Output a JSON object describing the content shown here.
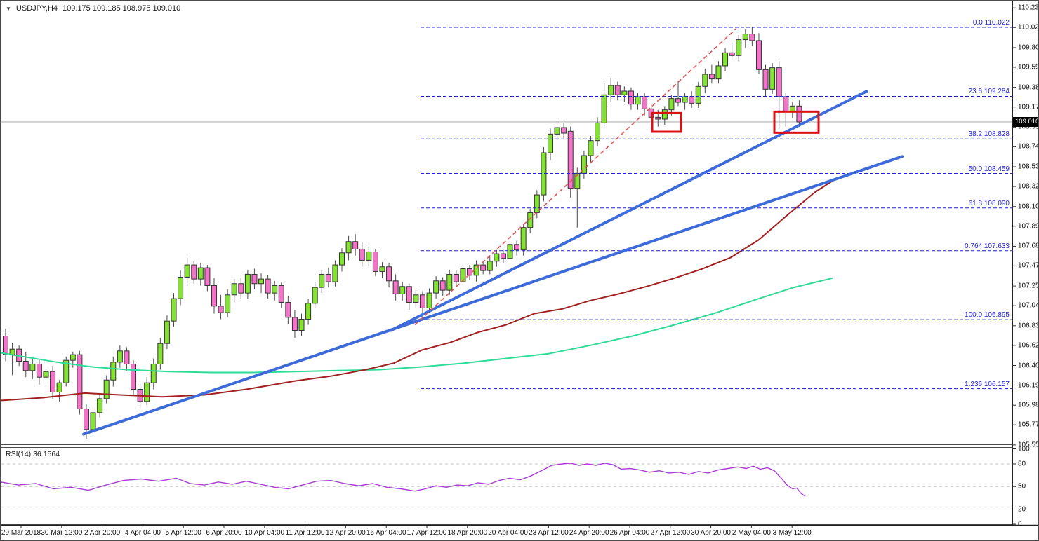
{
  "window": {
    "symbol_period": "USDJPY,H4",
    "ohlc_line": "109.175 109.185 108.975 109.010",
    "dropdown_icon": "▼"
  },
  "current_price": "109.010",
  "colors": {
    "bull": "#84E332",
    "bear": "#F273C7",
    "candle_border": "#333333",
    "wick": "#4a4a4a",
    "ma_green": "#2EDB98",
    "ma_darkred": "#A22020",
    "trendline_blue": "#3E6BDA",
    "fib_blue": "#2020D8",
    "red_dashed": "#E25555",
    "highlight_box": "#DD1111",
    "rsi_line": "#A73ED1",
    "price_line_gray": "#AAAAAA",
    "badge_bg": "#000000",
    "badge_text": "#FFFFFF",
    "rsi_grid": "#C4C4C4",
    "panel_border": "#4a4a4a"
  },
  "price_axis": {
    "labels": [
      "110.230",
      "110.020",
      "109.805",
      "109.595",
      "109.380",
      "109.170",
      "108.955",
      "108.745",
      "108.530",
      "108.320",
      "108.105",
      "107.895",
      "107.680",
      "107.470",
      "107.255",
      "107.045",
      "106.830",
      "106.620",
      "106.405",
      "106.195",
      "105.980",
      "105.770",
      "105.555"
    ]
  },
  "time_axis": {
    "labels": [
      "29 Mar 2018",
      "30 Mar 12:00",
      "2 Apr 20:00",
      "4 Apr 04:00",
      "5 Apr 12:00",
      "6 Apr 20:00",
      "10 Apr 04:00",
      "11 Apr 12:00",
      "12 Apr 20:00",
      "16 Apr 04:00",
      "17 Apr 12:00",
      "18 Apr 20:00",
      "20 Apr 04:00",
      "23 Apr 12:00",
      "24 Apr 20:00",
      "26 Apr 04:00",
      "27 Apr 12:00",
      "30 Apr 20:00",
      "2 May 04:00",
      "3 May 12:00"
    ]
  },
  "rsi_panel": {
    "label": "RSI(14) 36.1564",
    "scale_labels": [
      "100",
      "80",
      "50",
      "20",
      "0"
    ],
    "scale_values": [
      100,
      80,
      50,
      20,
      0
    ],
    "gridlines": [
      80,
      50,
      20
    ],
    "series": [
      [
        0,
        56
      ],
      [
        25,
        52
      ],
      [
        50,
        54
      ],
      [
        75,
        47
      ],
      [
        100,
        49
      ],
      [
        125,
        45
      ],
      [
        150,
        52
      ],
      [
        175,
        58
      ],
      [
        200,
        60
      ],
      [
        225,
        57
      ],
      [
        250,
        61
      ],
      [
        270,
        54
      ],
      [
        290,
        52
      ],
      [
        310,
        56
      ],
      [
        330,
        53
      ],
      [
        350,
        57
      ],
      [
        370,
        53
      ],
      [
        390,
        49
      ],
      [
        410,
        47
      ],
      [
        430,
        52
      ],
      [
        450,
        57
      ],
      [
        470,
        58
      ],
      [
        490,
        54
      ],
      [
        510,
        51
      ],
      [
        530,
        54
      ],
      [
        550,
        49
      ],
      [
        570,
        47
      ],
      [
        590,
        44
      ],
      [
        605,
        47
      ],
      [
        620,
        51
      ],
      [
        635,
        49
      ],
      [
        650,
        52
      ],
      [
        665,
        51
      ],
      [
        680,
        55
      ],
      [
        695,
        53
      ],
      [
        710,
        58
      ],
      [
        725,
        61
      ],
      [
        740,
        59
      ],
      [
        755,
        64
      ],
      [
        770,
        71
      ],
      [
        785,
        78
      ],
      [
        800,
        80
      ],
      [
        812,
        81
      ],
      [
        824,
        78
      ],
      [
        836,
        80
      ],
      [
        848,
        78
      ],
      [
        860,
        81
      ],
      [
        872,
        79
      ],
      [
        884,
        73
      ],
      [
        896,
        74
      ],
      [
        910,
        72
      ],
      [
        924,
        69
      ],
      [
        938,
        71
      ],
      [
        952,
        68
      ],
      [
        966,
        69
      ],
      [
        980,
        66
      ],
      [
        994,
        70
      ],
      [
        1008,
        68
      ],
      [
        1022,
        72
      ],
      [
        1036,
        74
      ],
      [
        1050,
        76
      ],
      [
        1062,
        74
      ],
      [
        1072,
        77
      ],
      [
        1082,
        73
      ],
      [
        1092,
        75
      ],
      [
        1102,
        71
      ],
      [
        1112,
        61
      ],
      [
        1120,
        52
      ],
      [
        1128,
        47
      ],
      [
        1134,
        48
      ],
      [
        1140,
        41
      ],
      [
        1146,
        37
      ]
    ]
  },
  "chart_data": {
    "type": "candlestick",
    "title": "USDJPY,H4",
    "symbol": "USDJPY",
    "timeframe": "H4",
    "current_bar": {
      "open": "109.175",
      "high": "109.185",
      "low": "108.975",
      "close": "109.010"
    },
    "y_axis_range": [
      105.555,
      110.23
    ],
    "rsi_range": [
      0,
      100
    ],
    "grid": "horizontal-dashed-fib-only",
    "candles": [
      [
        106.72,
        106.8,
        106.45,
        106.52
      ],
      [
        106.52,
        106.65,
        106.3,
        106.58
      ],
      [
        106.58,
        106.62,
        106.4,
        106.45
      ],
      [
        106.45,
        106.55,
        106.28,
        106.35
      ],
      [
        106.35,
        106.48,
        106.26,
        106.42
      ],
      [
        106.42,
        106.46,
        106.2,
        106.28
      ],
      [
        106.28,
        106.38,
        106.18,
        106.34
      ],
      [
        106.34,
        106.4,
        106.05,
        106.12
      ],
      [
        106.12,
        106.25,
        106.02,
        106.22
      ],
      [
        106.22,
        106.5,
        106.18,
        106.46
      ],
      [
        106.46,
        106.55,
        106.38,
        106.52
      ],
      [
        106.52,
        106.56,
        105.88,
        105.94
      ],
      [
        105.94,
        105.99,
        105.62,
        105.72
      ],
      [
        105.72,
        105.95,
        105.68,
        105.9
      ],
      [
        105.9,
        106.1,
        105.85,
        106.05
      ],
      [
        106.05,
        106.3,
        106.0,
        106.25
      ],
      [
        106.25,
        106.5,
        106.18,
        106.44
      ],
      [
        106.44,
        106.62,
        106.38,
        106.56
      ],
      [
        106.56,
        106.6,
        106.35,
        106.42
      ],
      [
        106.42,
        106.46,
        106.08,
        106.15
      ],
      [
        106.15,
        106.22,
        105.95,
        106.02
      ],
      [
        106.02,
        106.28,
        105.98,
        106.22
      ],
      [
        106.22,
        106.48,
        106.15,
        106.42
      ],
      [
        106.42,
        106.7,
        106.36,
        106.64
      ],
      [
        106.64,
        106.94,
        106.58,
        106.88
      ],
      [
        106.88,
        107.18,
        106.82,
        107.12
      ],
      [
        107.12,
        107.42,
        107.05,
        107.35
      ],
      [
        107.35,
        107.56,
        107.26,
        107.48
      ],
      [
        107.48,
        107.52,
        107.28,
        107.33
      ],
      [
        107.33,
        107.5,
        107.26,
        107.45
      ],
      [
        107.45,
        107.48,
        107.2,
        107.26
      ],
      [
        107.26,
        107.34,
        106.96,
        107.04
      ],
      [
        107.04,
        107.16,
        106.9,
        106.97
      ],
      [
        106.97,
        107.22,
        106.92,
        107.16
      ],
      [
        107.16,
        107.33,
        107.08,
        107.28
      ],
      [
        107.28,
        107.34,
        107.12,
        107.18
      ],
      [
        107.18,
        107.43,
        107.12,
        107.38
      ],
      [
        107.38,
        107.44,
        107.22,
        107.28
      ],
      [
        107.28,
        107.39,
        107.18,
        107.33
      ],
      [
        107.33,
        107.37,
        107.12,
        107.18
      ],
      [
        107.18,
        107.31,
        107.1,
        107.26
      ],
      [
        107.26,
        107.29,
        107.02,
        107.08
      ],
      [
        107.08,
        107.15,
        106.85,
        106.92
      ],
      [
        106.92,
        107.0,
        106.7,
        106.78
      ],
      [
        106.78,
        106.96,
        106.72,
        106.9
      ],
      [
        106.9,
        107.12,
        106.84,
        107.07
      ],
      [
        107.07,
        107.3,
        107.02,
        107.24
      ],
      [
        107.24,
        107.43,
        107.18,
        107.38
      ],
      [
        107.38,
        107.45,
        107.24,
        107.3
      ],
      [
        107.3,
        107.53,
        107.25,
        107.48
      ],
      [
        107.48,
        107.66,
        107.41,
        107.61
      ],
      [
        107.61,
        107.79,
        107.53,
        107.73
      ],
      [
        107.73,
        107.81,
        107.58,
        107.65
      ],
      [
        107.65,
        107.72,
        107.46,
        107.53
      ],
      [
        107.53,
        107.68,
        107.47,
        107.62
      ],
      [
        107.62,
        107.65,
        107.36,
        107.41
      ],
      [
        107.41,
        107.51,
        107.34,
        107.46
      ],
      [
        107.46,
        107.5,
        107.24,
        107.31
      ],
      [
        107.31,
        107.38,
        107.1,
        107.17
      ],
      [
        107.17,
        107.3,
        107.1,
        107.25
      ],
      [
        107.25,
        107.28,
        107.0,
        107.08
      ],
      [
        107.08,
        107.21,
        107.02,
        107.16
      ],
      [
        107.16,
        107.2,
        106.9,
        107.02
      ],
      [
        107.02,
        107.23,
        106.98,
        107.18
      ],
      [
        107.18,
        107.36,
        107.12,
        107.31
      ],
      [
        107.31,
        107.35,
        107.15,
        107.21
      ],
      [
        107.21,
        107.43,
        107.16,
        107.38
      ],
      [
        107.38,
        107.42,
        107.25,
        107.3
      ],
      [
        107.3,
        107.49,
        107.26,
        107.44
      ],
      [
        107.44,
        107.48,
        107.32,
        107.37
      ],
      [
        107.37,
        107.53,
        107.3,
        107.48
      ],
      [
        107.48,
        107.52,
        107.38,
        107.42
      ],
      [
        107.42,
        107.57,
        107.38,
        107.52
      ],
      [
        107.52,
        107.64,
        107.46,
        107.6
      ],
      [
        107.6,
        107.64,
        107.5,
        107.55
      ],
      [
        107.55,
        107.74,
        107.5,
        107.7
      ],
      [
        107.7,
        107.74,
        107.58,
        107.64
      ],
      [
        107.64,
        107.92,
        107.58,
        107.88
      ],
      [
        107.88,
        108.08,
        107.82,
        108.04
      ],
      [
        108.04,
        108.28,
        107.98,
        108.23
      ],
      [
        108.23,
        108.74,
        108.16,
        108.68
      ],
      [
        108.68,
        108.94,
        108.6,
        108.88
      ],
      [
        108.88,
        109.0,
        108.82,
        108.95
      ],
      [
        108.95,
        109.0,
        108.84,
        108.89
      ],
      [
        108.91,
        108.96,
        108.2,
        108.3
      ],
      [
        108.3,
        108.52,
        107.88,
        108.46
      ],
      [
        108.46,
        108.7,
        108.4,
        108.65
      ],
      [
        108.65,
        108.86,
        108.58,
        108.81
      ],
      [
        108.81,
        109.06,
        108.75,
        109.0
      ],
      [
        109.0,
        109.42,
        108.94,
        109.3
      ],
      [
        109.3,
        109.48,
        109.22,
        109.4
      ],
      [
        109.4,
        109.44,
        109.24,
        109.3
      ],
      [
        109.3,
        109.39,
        109.22,
        109.34
      ],
      [
        109.34,
        109.38,
        109.14,
        109.2
      ],
      [
        109.2,
        109.32,
        109.14,
        109.28
      ],
      [
        109.28,
        109.32,
        109.08,
        109.15
      ],
      [
        109.15,
        109.2,
        108.97,
        109.06
      ],
      [
        109.06,
        109.14,
        108.96,
        109.04
      ],
      [
        109.04,
        109.18,
        108.98,
        109.14
      ],
      [
        109.14,
        109.3,
        109.08,
        109.26
      ],
      [
        109.26,
        109.45,
        109.18,
        109.22
      ],
      [
        109.22,
        109.32,
        109.14,
        109.28
      ],
      [
        109.28,
        109.34,
        109.16,
        109.21
      ],
      [
        109.21,
        109.44,
        109.16,
        109.39
      ],
      [
        109.39,
        109.58,
        109.32,
        109.52
      ],
      [
        109.52,
        109.62,
        109.42,
        109.47
      ],
      [
        109.47,
        109.66,
        109.42,
        109.61
      ],
      [
        109.61,
        109.8,
        109.55,
        109.75
      ],
      [
        109.75,
        109.86,
        109.68,
        109.72
      ],
      [
        109.72,
        109.94,
        109.66,
        109.89
      ],
      [
        109.89,
        110.0,
        109.8,
        109.95
      ],
      [
        109.95,
        110.03,
        109.82,
        109.88
      ],
      [
        109.88,
        109.96,
        109.52,
        109.57
      ],
      [
        109.57,
        109.62,
        109.28,
        109.36
      ],
      [
        109.36,
        109.64,
        109.31,
        109.59
      ],
      [
        109.59,
        109.66,
        108.94,
        109.28
      ],
      [
        109.28,
        109.32,
        108.96,
        109.12
      ],
      [
        109.12,
        109.22,
        109.05,
        109.18
      ],
      [
        109.18,
        109.24,
        108.96,
        109.01
      ]
    ],
    "fibonacci": {
      "x_start": 598,
      "levels": [
        {
          "label": "0.0 110.022",
          "price": 110.022
        },
        {
          "label": "23.6 109.284",
          "price": 109.284
        },
        {
          "label": "38.2 108.828",
          "price": 108.828
        },
        {
          "label": "50.0 108.459",
          "price": 108.459
        },
        {
          "label": "61.8 108.090",
          "price": 108.09
        },
        {
          "label": "0.764 107.633",
          "price": 107.633
        },
        {
          "label": "100.0 106.895",
          "price": 106.895
        },
        {
          "label": "1.236 106.157",
          "price": 106.157
        }
      ]
    },
    "moving_averages": [
      {
        "name": "ma-green",
        "x": [
          0,
          40,
          80,
          130,
          180,
          240,
          300,
          360,
          420,
          480,
          540,
          600,
          660,
          720,
          780,
          840,
          900,
          960,
          1020,
          1080,
          1130,
          1185
        ],
        "prices": [
          106.54,
          106.49,
          106.44,
          106.39,
          106.36,
          106.34,
          106.33,
          106.33,
          106.34,
          106.35,
          106.36,
          106.39,
          106.43,
          106.48,
          106.53,
          106.62,
          106.72,
          106.84,
          106.97,
          107.12,
          107.24,
          107.34
        ]
      },
      {
        "name": "ma-darkred",
        "x": [
          0,
          60,
          120,
          170,
          230,
          290,
          350,
          420,
          470,
          520,
          560,
          600,
          640,
          680,
          720,
          760,
          800,
          840,
          880,
          920,
          960,
          1000,
          1040,
          1080,
          1120,
          1160,
          1185
        ],
        "prices": [
          106.03,
          106.06,
          106.11,
          106.09,
          106.07,
          106.09,
          106.15,
          106.24,
          106.29,
          106.36,
          106.43,
          106.57,
          106.65,
          106.76,
          106.84,
          106.96,
          107.01,
          107.1,
          107.17,
          107.25,
          107.34,
          107.44,
          107.56,
          107.75,
          108.01,
          108.26,
          108.38
        ]
      }
    ],
    "trendlines": [
      {
        "name": "support-trendline-long",
        "from": [
          118,
          105.67
        ],
        "to": [
          1284,
          108.64
        ]
      },
      {
        "name": "support-trendline-steep",
        "from": [
          556,
          106.78
        ],
        "to": [
          1234,
          109.34
        ]
      }
    ],
    "red_dashed_line": {
      "from": [
        590,
        106.84
      ],
      "to": [
        1048,
        110.01
      ]
    },
    "highlight_boxes": [
      {
        "x": 928,
        "width": 41,
        "price_top": 109.105,
        "price_bottom": 108.905
      },
      {
        "x": 1102,
        "width": 63,
        "price_top": 109.12,
        "price_bottom": 108.895
      }
    ]
  }
}
